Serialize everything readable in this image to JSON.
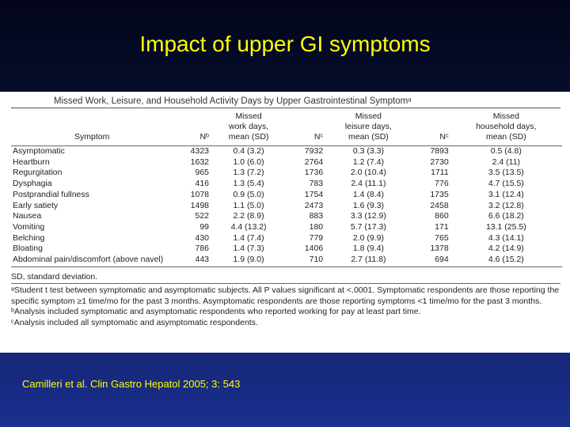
{
  "slide": {
    "title": "Impact of upper GI symptoms",
    "citation": "Camilleri et al. Clin Gastro Hepatol 2005; 3: 543"
  },
  "table": {
    "title": "Missed Work, Leisure, and Household Activity Days by Upper Gastrointestinal Symptomᵃ",
    "headers": {
      "symptom": "Symptom",
      "n1": "Nᵇ",
      "work": [
        "Missed",
        "work days,",
        "mean (SD)"
      ],
      "n2": "Nᶜ",
      "leisure": [
        "Missed",
        "leisure days,",
        "mean (SD)"
      ],
      "n3": "Nᶜ",
      "household": [
        "Missed",
        "household days,",
        "mean (SD)"
      ]
    },
    "rows": [
      {
        "symptom": "Asymptomatic",
        "n1": "4323",
        "work": "0.4 (3.2)",
        "n2": "7932",
        "leisure": "0.3 (3.3)",
        "n3": "7893",
        "household": "0.5 (4.8)"
      },
      {
        "symptom": "Heartburn",
        "n1": "1632",
        "work": "1.0 (6.0)",
        "n2": "2764",
        "leisure": "1.2 (7.4)",
        "n3": "2730",
        "household": "2.4 (11)"
      },
      {
        "symptom": "Regurgitation",
        "n1": "965",
        "work": "1.3 (7.2)",
        "n2": "1736",
        "leisure": "2.0 (10.4)",
        "n3": "1711",
        "household": "3.5 (13.5)"
      },
      {
        "symptom": "Dysphagia",
        "n1": "416",
        "work": "1.3 (5.4)",
        "n2": "783",
        "leisure": "2.4 (11.1)",
        "n3": "776",
        "household": "4.7 (15.5)"
      },
      {
        "symptom": "Postprandial fullness",
        "n1": "1078",
        "work": "0.9 (5.0)",
        "n2": "1754",
        "leisure": "1.4 (8.4)",
        "n3": "1735",
        "household": "3.1 (12.4)"
      },
      {
        "symptom": "Early satiety",
        "n1": "1498",
        "work": "1.1 (5.0)",
        "n2": "2473",
        "leisure": "1.6 (9.3)",
        "n3": "2458",
        "household": "3.2 (12.8)"
      },
      {
        "symptom": "Nausea",
        "n1": "522",
        "work": "2.2 (8.9)",
        "n2": "883",
        "leisure": "3.3 (12.9)",
        "n3": "860",
        "household": "6.6 (18.2)"
      },
      {
        "symptom": "Vomiting",
        "n1": "99",
        "work": "4.4 (13.2)",
        "n2": "180",
        "leisure": "5.7 (17.3)",
        "n3": "171",
        "household": "13.1 (25.5)"
      },
      {
        "symptom": "Belching",
        "n1": "430",
        "work": "1.4 (7.4)",
        "n2": "779",
        "leisure": "2.0 (9.9)",
        "n3": "765",
        "household": "4.3 (14.1)"
      },
      {
        "symptom": "Bloating",
        "n1": "786",
        "work": "1.4 (7.3)",
        "n2": "1406",
        "leisure": "1.8 (9.4)",
        "n3": "1378",
        "household": "4.2 (14.9)"
      },
      {
        "symptom": "Abdominal pain/discomfort (above navel)",
        "n1": "443",
        "work": "1.9 (9.0)",
        "n2": "710",
        "leisure": "2.7 (11.8)",
        "n3": "694",
        "household": "4.6 (15.2)"
      }
    ],
    "notes": {
      "abbreviation": "SD, standard deviation.",
      "a": "ᵃStudent t test between symptomatic and asymptomatic subjects. All P values significant at <.0001. Symptomatic respondents are those reporting the specific symptom ≥1 time/mo for the past 3 months. Asymptomatic respondents are those reporting symptoms <1 time/mo for the past 3 months.",
      "b": "ᵇAnalysis included symptomatic and asymptomatic respondents who reported working for pay at least part time.",
      "c": "ᶜAnalysis included all symptomatic and asymptomatic respondents."
    }
  }
}
